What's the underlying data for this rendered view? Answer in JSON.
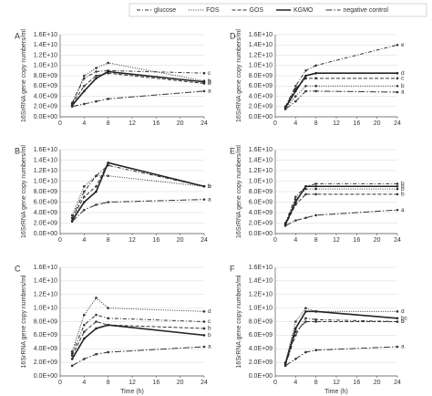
{
  "chart_data": [
    {
      "type": "line",
      "panel": "A",
      "ylabel": "16SrRNA gene copy numbers/ml",
      "x": [
        2,
        4,
        6,
        8,
        24
      ],
      "xlim": [
        0,
        24
      ],
      "xticks": [
        0,
        4,
        8,
        12,
        16,
        20,
        24
      ],
      "ylim": [
        0,
        16000000000
      ],
      "yticks": [
        {
          "value": 0,
          "label": "0.0E+00"
        },
        {
          "value": 2000000000,
          "label": "2.0E+09"
        },
        {
          "value": 4000000000,
          "label": "4.0E+09"
        },
        {
          "value": 6000000000,
          "label": "6.0E+09"
        },
        {
          "value": 8000000000,
          "label": "8.0E+09"
        },
        {
          "value": 10000000000,
          "label": "1.0E+10"
        },
        {
          "value": 12000000000,
          "label": "1.2E+10"
        },
        {
          "value": 14000000000,
          "label": "1.4E+10"
        },
        {
          "value": 16000000000,
          "label": "1.6E+10"
        }
      ],
      "grid": true,
      "series": [
        {
          "name": "glucose",
          "color": "#333333",
          "linestyle": "dashdot-dot",
          "values": [
            2700000000.0,
            7500000000.0,
            8800000000.0,
            9000000000.0,
            8500000000.0
          ],
          "end_label": "c"
        },
        {
          "name": "FOS",
          "color": "#333333",
          "linestyle": "dotted",
          "values": [
            2600000000.0,
            8000000000.0,
            9500000000.0,
            10500000000.0,
            7000000000.0
          ],
          "end_label": "b"
        },
        {
          "name": "GOS",
          "color": "#333333",
          "linestyle": "dashed",
          "values": [
            2500000000.0,
            6000000000.0,
            8000000000.0,
            8500000000.0,
            6500000000.0
          ],
          "end_label": "b"
        },
        {
          "name": "KGMO",
          "color": "#222222",
          "linestyle": "solid",
          "values": [
            2200000000.0,
            5000000000.0,
            7500000000.0,
            8800000000.0,
            6800000000.0
          ],
          "end_label": "b"
        },
        {
          "name": "negative control",
          "color": "#333333",
          "linestyle": "dashdot",
          "values": [
            2000000000.0,
            2500000000.0,
            3000000000.0,
            3500000000.0,
            5000000000.0
          ],
          "end_label": "a"
        }
      ]
    },
    {
      "type": "line",
      "panel": "B",
      "ylabel": "16SrRNA gene copy numbers/ml",
      "x": [
        2,
        4,
        6,
        8,
        24
      ],
      "xlim": [
        0,
        24
      ],
      "xticks": [
        0,
        4,
        8,
        12,
        16,
        20,
        24
      ],
      "ylim": [
        0,
        16000000000
      ],
      "yticks": [
        {
          "value": 0,
          "label": "0.0E+00"
        },
        {
          "value": 2000000000,
          "label": "2.0E+09"
        },
        {
          "value": 4000000000,
          "label": "4.0E+09"
        },
        {
          "value": 6000000000,
          "label": "6.0E+09"
        },
        {
          "value": 8000000000,
          "label": "8.0E+09"
        },
        {
          "value": 10000000000,
          "label": "1.0E+10"
        },
        {
          "value": 12000000000,
          "label": "1.2E+10"
        },
        {
          "value": 14000000000,
          "label": "1.4E+10"
        },
        {
          "value": 16000000000,
          "label": "1.6E+10"
        }
      ],
      "grid": true,
      "series": [
        {
          "color": "#333333",
          "linestyle": "dashdot-dot",
          "values": [
            3000000000.0,
            8000000000.0,
            11000000000.0,
            13000000000.0,
            9000000000.0
          ],
          "end_label": "b"
        },
        {
          "color": "#333333",
          "linestyle": "dotted",
          "values": [
            3500000000.0,
            9000000000.0,
            11000000000.0,
            11000000000.0,
            9000000000.0
          ],
          "end_label": "b"
        },
        {
          "color": "#333333",
          "linestyle": "dashed",
          "values": [
            3000000000.0,
            7000000000.0,
            9000000000.0,
            13500000000.0,
            9000000000.0
          ],
          "end_label": "b"
        },
        {
          "color": "#222222",
          "linestyle": "solid",
          "values": [
            2500000000.0,
            6000000000.0,
            8000000000.0,
            13500000000.0,
            9000000000.0
          ],
          "end_label": "b"
        },
        {
          "color": "#333333",
          "linestyle": "dashdot",
          "values": [
            2300000000.0,
            4500000000.0,
            5500000000.0,
            6000000000.0,
            6500000000.0
          ],
          "end_label": "a"
        }
      ]
    },
    {
      "type": "line",
      "panel": "C",
      "ylabel": "16SrRNA gene copy numbers/ml",
      "xlabel": "Time (h)",
      "x": [
        2,
        4,
        6,
        8,
        24
      ],
      "xlim": [
        0,
        24
      ],
      "xticks": [
        0,
        4,
        8,
        12,
        16,
        20,
        24
      ],
      "ylim": [
        0,
        16000000000
      ],
      "yticks": [
        {
          "value": 0,
          "label": "0.0E+00"
        },
        {
          "value": 2000000000,
          "label": "2.0E+09"
        },
        {
          "value": 4000000000,
          "label": "4.0E+09"
        },
        {
          "value": 6000000000,
          "label": "6.0E+09"
        },
        {
          "value": 8000000000,
          "label": "8.0E+09"
        },
        {
          "value": 10000000000,
          "label": "1.0E+10"
        },
        {
          "value": 12000000000,
          "label": "1.2E+10"
        },
        {
          "value": 14000000000,
          "label": "1.4E+10"
        },
        {
          "value": 16000000000,
          "label": "1.6E+10"
        }
      ],
      "grid": true,
      "series": [
        {
          "color": "#333333",
          "linestyle": "dashdot-dot",
          "values": [
            3300000000.0,
            7500000000.0,
            9000000000.0,
            8500000000.0,
            8000000000.0
          ],
          "end_label": "c"
        },
        {
          "color": "#333333",
          "linestyle": "dotted",
          "values": [
            3600000000.0,
            9000000000.0,
            11500000000.0,
            10000000000.0,
            9500000000.0
          ],
          "end_label": "d"
        },
        {
          "color": "#333333",
          "linestyle": "dashed",
          "values": [
            3000000000.0,
            6500000000.0,
            8000000000.0,
            7500000000.0,
            7000000000.0
          ],
          "end_label": "b"
        },
        {
          "color": "#222222",
          "linestyle": "solid",
          "values": [
            2500000000.0,
            5500000000.0,
            7000000000.0,
            7500000000.0,
            6000000000.0
          ],
          "end_label": "b"
        },
        {
          "color": "#333333",
          "linestyle": "dashdot",
          "values": [
            1500000000.0,
            2500000000.0,
            3200000000.0,
            3500000000.0,
            4300000000.0
          ],
          "end_label": "a"
        }
      ]
    },
    {
      "type": "line",
      "panel": "D",
      "ylabel": "16SrRNA gene copy numbers/ml",
      "x": [
        2,
        4,
        6,
        8,
        24
      ],
      "xlim": [
        0,
        24
      ],
      "xticks": [
        0,
        4,
        8,
        12,
        16,
        20,
        24
      ],
      "ylim": [
        0,
        16000000000
      ],
      "yticks": [
        {
          "value": 0,
          "label": "0.0E+00"
        },
        {
          "value": 2000000000,
          "label": "2.0E+09"
        },
        {
          "value": 4000000000,
          "label": "4.0E+09"
        },
        {
          "value": 6000000000,
          "label": "6.0E+09"
        },
        {
          "value": 8000000000,
          "label": "8.0E+09"
        },
        {
          "value": 10000000000,
          "label": "1.0E+10"
        },
        {
          "value": 12000000000,
          "label": "1.2E+10"
        },
        {
          "value": 14000000000,
          "label": "1.4E+10"
        },
        {
          "value": 16000000000,
          "label": "1.6E+10"
        }
      ],
      "grid": true,
      "series": [
        {
          "color": "#333333",
          "linestyle": "dashdot-dot",
          "values": [
            2000000000.0,
            6000000000.0,
            9000000000.0,
            10000000000.0,
            14000000000.0
          ],
          "end_label": "e"
        },
        {
          "color": "#333333",
          "linestyle": "dotted",
          "values": [
            1700000000.0,
            4000000000.0,
            6000000000.0,
            6000000000.0,
            6000000000.0
          ],
          "end_label": "b"
        },
        {
          "color": "#333333",
          "linestyle": "dashed",
          "values": [
            2000000000.0,
            5500000000.0,
            7500000000.0,
            7500000000.0,
            7500000000.0
          ],
          "end_label": "c"
        },
        {
          "color": "#222222",
          "linestyle": "solid",
          "values": [
            1800000000.0,
            5000000000.0,
            8000000000.0,
            8500000000.0,
            8500000000.0
          ],
          "end_label": "d"
        },
        {
          "color": "#333333",
          "linestyle": "dashdot",
          "values": [
            1500000000.0,
            3000000000.0,
            5000000000.0,
            5000000000.0,
            4800000000.0
          ],
          "end_label": "a"
        }
      ]
    },
    {
      "type": "line",
      "panel": "E",
      "ylabel": "16SrRNA gene copy numbers/ml",
      "x": [
        2,
        4,
        6,
        8,
        24
      ],
      "xlim": [
        0,
        24
      ],
      "xticks": [
        0,
        4,
        8,
        12,
        16,
        20,
        24
      ],
      "ylim": [
        0,
        16000000000
      ],
      "yticks": [
        {
          "value": 0,
          "label": "0.0E+00"
        },
        {
          "value": 2000000000,
          "label": "2.0E+09"
        },
        {
          "value": 4000000000,
          "label": "4.0E+09"
        },
        {
          "value": 6000000000,
          "label": "6.0E+09"
        },
        {
          "value": 8000000000,
          "label": "8.0E+09"
        },
        {
          "value": 10000000000,
          "label": "1.0E+10"
        },
        {
          "value": 12000000000,
          "label": "1.2E+10"
        },
        {
          "value": 14000000000,
          "label": "1.4E+10"
        },
        {
          "value": 16000000000,
          "label": "1.6E+10"
        }
      ],
      "grid": true,
      "series": [
        {
          "color": "#333333",
          "linestyle": "dashdot-dot",
          "values": [
            2000000000.0,
            7000000000.0,
            9000000000.0,
            9500000000.0,
            9500000000.0
          ],
          "end_label": "b"
        },
        {
          "color": "#333333",
          "linestyle": "dotted",
          "values": [
            1700000000.0,
            6500000000.0,
            8500000000.0,
            8500000000.0,
            8500000000.0
          ],
          "end_label": "b"
        },
        {
          "color": "#333333",
          "linestyle": "dashed",
          "values": [
            1600000000.0,
            5500000000.0,
            7500000000.0,
            7500000000.0,
            7500000000.0
          ],
          "end_label": "b"
        },
        {
          "color": "#222222",
          "linestyle": "solid",
          "values": [
            1800000000.0,
            6000000000.0,
            9000000000.0,
            9000000000.0,
            9000000000.0
          ],
          "end_label": "b"
        },
        {
          "color": "#333333",
          "linestyle": "dashdot",
          "values": [
            1500000000.0,
            2500000000.0,
            3000000000.0,
            3500000000.0,
            4500000000.0
          ],
          "end_label": "a"
        }
      ]
    },
    {
      "type": "line",
      "panel": "F",
      "ylabel": "16SrRNA gene copy numbers/ml",
      "xlabel": "Time (h)",
      "x": [
        2,
        4,
        6,
        8,
        24
      ],
      "xlim": [
        0,
        24
      ],
      "xticks": [
        0,
        4,
        8,
        12,
        16,
        20,
        24
      ],
      "ylim": [
        0,
        16000000000
      ],
      "yticks": [
        {
          "value": 0,
          "label": "0.0E+00"
        },
        {
          "value": 2000000000,
          "label": "2.0E+09"
        },
        {
          "value": 4000000000,
          "label": "4.0E+09"
        },
        {
          "value": 6000000000,
          "label": "6.0E+09"
        },
        {
          "value": 8000000000,
          "label": "8.0E+09"
        },
        {
          "value": 10000000000,
          "label": "1.0E+10"
        },
        {
          "value": 12000000000,
          "label": "1.2E+10"
        },
        {
          "value": 14000000000,
          "label": "1.4E+10"
        },
        {
          "value": 16000000000,
          "label": "1.6E+10"
        }
      ],
      "grid": true,
      "series": [
        {
          "color": "#333333",
          "linestyle": "dashdot-dot",
          "values": [
            1600000000.0,
            6000000000.0,
            8500000000.0,
            8300000000.0,
            8000000000.0
          ],
          "end_label": "b"
        },
        {
          "color": "#333333",
          "linestyle": "dotted",
          "values": [
            2000000000.0,
            8000000000.0,
            10000000000.0,
            9500000000.0,
            9500000000.0
          ],
          "end_label": "d"
        },
        {
          "color": "#333333",
          "linestyle": "dashed",
          "values": [
            1700000000.0,
            6500000000.0,
            8000000000.0,
            8000000000.0,
            8000000000.0
          ],
          "end_label": "b"
        },
        {
          "color": "#222222",
          "linestyle": "solid",
          "values": [
            1800000000.0,
            7000000000.0,
            9500000000.0,
            9500000000.0,
            8500000000.0
          ],
          "end_label": "bc"
        },
        {
          "color": "#333333",
          "linestyle": "dashdot",
          "values": [
            1500000000.0,
            2500000000.0,
            3500000000.0,
            3800000000.0,
            4300000000.0
          ],
          "end_label": "a"
        }
      ]
    }
  ]
}
